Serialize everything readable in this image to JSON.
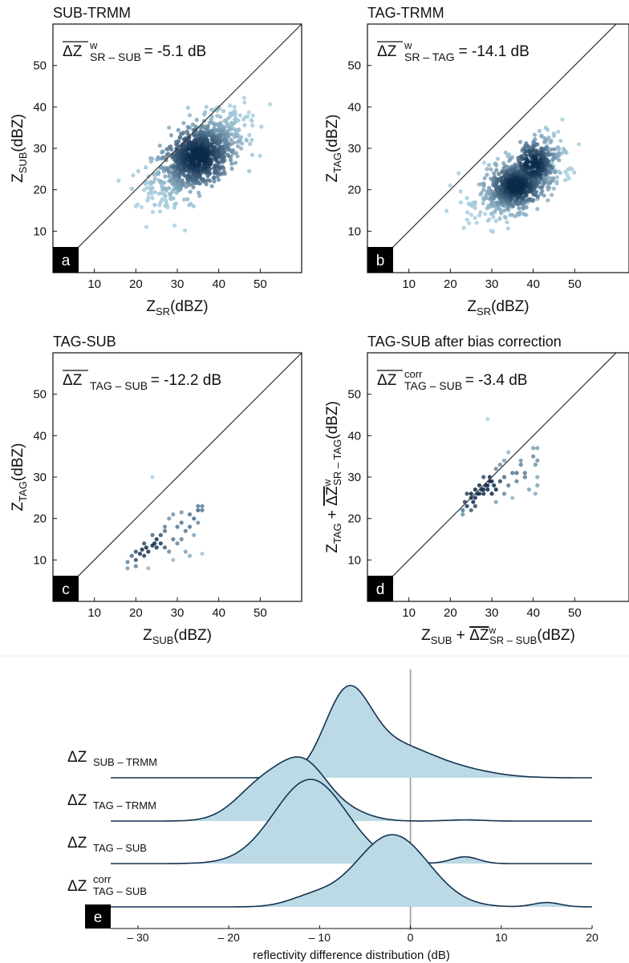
{
  "figure": {
    "panels": [
      {
        "id": "a",
        "title": "SUB-TRMM",
        "letter": "a",
        "annotation": {
          "main": "ΔZ",
          "sup": "w",
          "sub": "SR – SUB",
          "value": " = -5.1 dB"
        },
        "xlabel": {
          "pre": "Z",
          "sub": "SR",
          "post": "(dBZ)"
        },
        "ylabel": {
          "pre": "Z",
          "sub": "SUB",
          "post": "(dBZ)"
        }
      },
      {
        "id": "b",
        "title": "TAG-TRMM",
        "letter": "b",
        "annotation": {
          "main": "ΔZ",
          "sup": "w",
          "sub": "SR – TAG",
          "value": " = -14.1 dB"
        },
        "xlabel": {
          "pre": "Z",
          "sub": "SR",
          "post": "(dBZ)"
        },
        "ylabel": {
          "pre": "Z",
          "sub": "TAG",
          "post": "(dBZ)"
        }
      },
      {
        "id": "c",
        "title": "TAG-SUB",
        "letter": "c",
        "annotation": {
          "main": "ΔZ",
          "sup": "",
          "sub": "TAG – SUB",
          "value": " = -12.2 dB"
        },
        "xlabel": {
          "pre": "Z",
          "sub": "SUB",
          "post": "(dBZ)"
        },
        "ylabel": {
          "pre": "Z",
          "sub": "TAG",
          "post": "(dBZ)"
        }
      },
      {
        "id": "d",
        "title": "TAG-SUB after bias correction",
        "letter": "d",
        "annotation": {
          "main": "ΔZ",
          "sup": "corr",
          "sub": "TAG – SUB",
          "value": " = -3.4 dB"
        },
        "xlabel": {
          "pre": "Z",
          "sub": "SUB",
          "mid": " + ",
          "bar": "ΔZ",
          "sup2": "w",
          "sub2": "SR – SUB",
          "post": "(dBZ)"
        },
        "ylabel": {
          "pre": "Z",
          "sub": "TAG",
          "mid": " + ",
          "bar": "ΔZ",
          "sup2": "w",
          "sub2": "SR – TAG",
          "post": "(dBZ)"
        }
      }
    ],
    "ridge": {
      "letter": "e",
      "xlabel": "reflectivity difference distribution (dB)",
      "labels": [
        {
          "main": "ΔZ",
          "sup": "",
          "sub": "SUB – TRMM"
        },
        {
          "main": "ΔZ",
          "sup": "",
          "sub": "TAG – TRMM"
        },
        {
          "main": "ΔZ",
          "sup": "",
          "sub": "TAG – SUB"
        },
        {
          "main": "ΔZ",
          "sup": "corr",
          "sub": "TAG – SUB"
        }
      ]
    }
  },
  "chart_data": [
    {
      "type": "scatter",
      "panel": "a",
      "title": "SUB-TRMM",
      "xlim": [
        0,
        60
      ],
      "ylim": [
        0,
        60
      ],
      "xticks": [
        10,
        20,
        30,
        40,
        50
      ],
      "yticks": [
        10,
        20,
        30,
        40,
        50
      ],
      "reference_line": "1:1",
      "density_clusters": [
        {
          "cx": 35,
          "cy": 28,
          "sx": 5.5,
          "sy": 5,
          "rho": 0.6,
          "n": 900
        }
      ],
      "points": [
        [
          24,
          18
        ],
        [
          26,
          17
        ],
        [
          30,
          22
        ],
        [
          33,
          26
        ],
        [
          35,
          28
        ],
        [
          36,
          29
        ],
        [
          38,
          31
        ],
        [
          40,
          33
        ],
        [
          42,
          36
        ],
        [
          44,
          38
        ],
        [
          46,
          37
        ],
        [
          28,
          35
        ],
        [
          22,
          20
        ],
        [
          20,
          16
        ],
        [
          48,
          32
        ],
        [
          37,
          40
        ],
        [
          33,
          38
        ]
      ]
    },
    {
      "type": "scatter",
      "panel": "b",
      "title": "TAG-TRMM",
      "xlim": [
        0,
        60
      ],
      "ylim": [
        0,
        60
      ],
      "xticks": [
        10,
        20,
        30,
        40,
        50
      ],
      "yticks": [
        10,
        20,
        30,
        40,
        50
      ],
      "reference_line": "1:1",
      "density_clusters": [
        {
          "cx": 36,
          "cy": 21,
          "sx": 4.5,
          "sy": 3.5,
          "rho": 0.5,
          "n": 650
        },
        {
          "cx": 40,
          "cy": 26,
          "sx": 3.5,
          "sy": 4,
          "rho": 0.5,
          "n": 300
        }
      ],
      "points": [
        [
          51,
          31
        ],
        [
          22,
          24
        ],
        [
          20,
          21
        ],
        [
          24,
          18
        ],
        [
          26,
          17
        ],
        [
          30,
          16
        ],
        [
          45,
          33
        ],
        [
          46,
          34
        ],
        [
          43,
          35
        ],
        [
          48,
          29
        ],
        [
          33,
          15
        ],
        [
          38,
          14
        ],
        [
          28,
          20
        ],
        [
          42,
          30
        ]
      ]
    },
    {
      "type": "scatter",
      "panel": "c",
      "title": "TAG-SUB",
      "xlim": [
        0,
        60
      ],
      "ylim": [
        0,
        60
      ],
      "xticks": [
        10,
        20,
        30,
        40,
        50
      ],
      "yticks": [
        10,
        20,
        30,
        40,
        50
      ],
      "reference_line": "1:1",
      "points": [
        [
          24,
          30
        ],
        [
          18,
          8
        ],
        [
          18,
          9.5
        ],
        [
          19,
          11
        ],
        [
          20,
          12
        ],
        [
          20,
          10
        ],
        [
          21,
          11.5
        ],
        [
          21.5,
          12.5
        ],
        [
          22,
          11
        ],
        [
          22.5,
          13
        ],
        [
          23,
          12
        ],
        [
          24,
          13.5
        ],
        [
          24.5,
          14
        ],
        [
          25,
          13
        ],
        [
          25,
          15
        ],
        [
          26,
          14
        ],
        [
          26,
          16
        ],
        [
          27,
          13
        ],
        [
          27,
          17
        ],
        [
          28,
          12
        ],
        [
          28,
          20
        ],
        [
          29,
          21
        ],
        [
          29,
          10
        ],
        [
          30,
          18
        ],
        [
          30,
          14
        ],
        [
          31,
          15
        ],
        [
          31,
          19
        ],
        [
          32,
          17
        ],
        [
          32,
          12
        ],
        [
          33,
          21
        ],
        [
          33,
          18
        ],
        [
          34,
          20
        ],
        [
          34,
          16
        ],
        [
          35,
          22
        ],
        [
          35,
          23
        ],
        [
          36,
          23
        ],
        [
          36,
          22
        ],
        [
          35,
          19
        ],
        [
          36,
          11.5
        ],
        [
          29,
          15
        ],
        [
          23,
          8
        ],
        [
          20,
          8.5
        ],
        [
          27,
          18
        ],
        [
          24,
          16
        ],
        [
          31,
          21.5
        ],
        [
          22,
          14
        ],
        [
          33,
          11
        ]
      ]
    },
    {
      "type": "scatter",
      "panel": "d",
      "title": "TAG-SUB after bias correction",
      "xlim": [
        0,
        60
      ],
      "ylim": [
        0,
        60
      ],
      "xticks": [
        10,
        20,
        30,
        40,
        50
      ],
      "yticks": [
        10,
        20,
        30,
        40,
        50
      ],
      "reference_line": "1:1",
      "points": [
        [
          29,
          44
        ],
        [
          23,
          21
        ],
        [
          23,
          22
        ],
        [
          23.5,
          24
        ],
        [
          24,
          23
        ],
        [
          24,
          26
        ],
        [
          25,
          25
        ],
        [
          25,
          26
        ],
        [
          25.5,
          24
        ],
        [
          26,
          25
        ],
        [
          26,
          27
        ],
        [
          26.5,
          26
        ],
        [
          27,
          26
        ],
        [
          27,
          28
        ],
        [
          27.5,
          27
        ],
        [
          28,
          27
        ],
        [
          28,
          26
        ],
        [
          28.5,
          28
        ],
        [
          29,
          28
        ],
        [
          29,
          27
        ],
        [
          29.5,
          29
        ],
        [
          29.5,
          30
        ],
        [
          30,
          29
        ],
        [
          30,
          26
        ],
        [
          30.5,
          28
        ],
        [
          31,
          27
        ],
        [
          31,
          24
        ],
        [
          32,
          29
        ],
        [
          32,
          33
        ],
        [
          33,
          34
        ],
        [
          33,
          30
        ],
        [
          34,
          36
        ],
        [
          34,
          28
        ],
        [
          35,
          25
        ],
        [
          35,
          31
        ],
        [
          36,
          29
        ],
        [
          37,
          34
        ],
        [
          37,
          33
        ],
        [
          38,
          31
        ],
        [
          38,
          30
        ],
        [
          39,
          27
        ],
        [
          40,
          37
        ],
        [
          40,
          35
        ],
        [
          40.5,
          33
        ],
        [
          41,
          37
        ],
        [
          41,
          34
        ],
        [
          41,
          30
        ],
        [
          40.5,
          26
        ],
        [
          41,
          28
        ],
        [
          26,
          23
        ],
        [
          25,
          22
        ],
        [
          28,
          30
        ],
        [
          31,
          32
        ],
        [
          33,
          26
        ],
        [
          36,
          31
        ]
      ]
    },
    {
      "type": "area",
      "panel": "e",
      "subtype": "ridgeline",
      "xlabel": "reflectivity difference distribution (dB)",
      "xlim": [
        -33,
        20
      ],
      "xticks": [
        -30,
        -20,
        -10,
        0,
        10,
        20
      ],
      "reference_x": 0,
      "series": [
        {
          "name": "ΔZSUB–TRMM",
          "components": [
            [
              -7,
              2.5,
              1.0
            ],
            [
              -2,
              4,
              0.4
            ],
            [
              5,
              4,
              0.1
            ]
          ]
        },
        {
          "name": "ΔZTAG–TRMM",
          "components": [
            [
              -11.5,
              2.5,
              0.8
            ],
            [
              -16,
              3,
              0.65
            ],
            [
              -7,
              2.5,
              0.15
            ],
            [
              6,
              2,
              0.02
            ]
          ]
        },
        {
          "name": "ΔZTAG–SUB",
          "components": [
            [
              -11,
              4,
              1.0
            ],
            [
              6,
              1.5,
              0.08
            ]
          ]
        },
        {
          "name": "ΔZcorrTAG–SUB",
          "components": [
            [
              -2,
              4,
              1.0
            ],
            [
              -11,
              2.5,
              0.12
            ],
            [
              15,
              1.5,
              0.06
            ]
          ]
        }
      ]
    }
  ]
}
